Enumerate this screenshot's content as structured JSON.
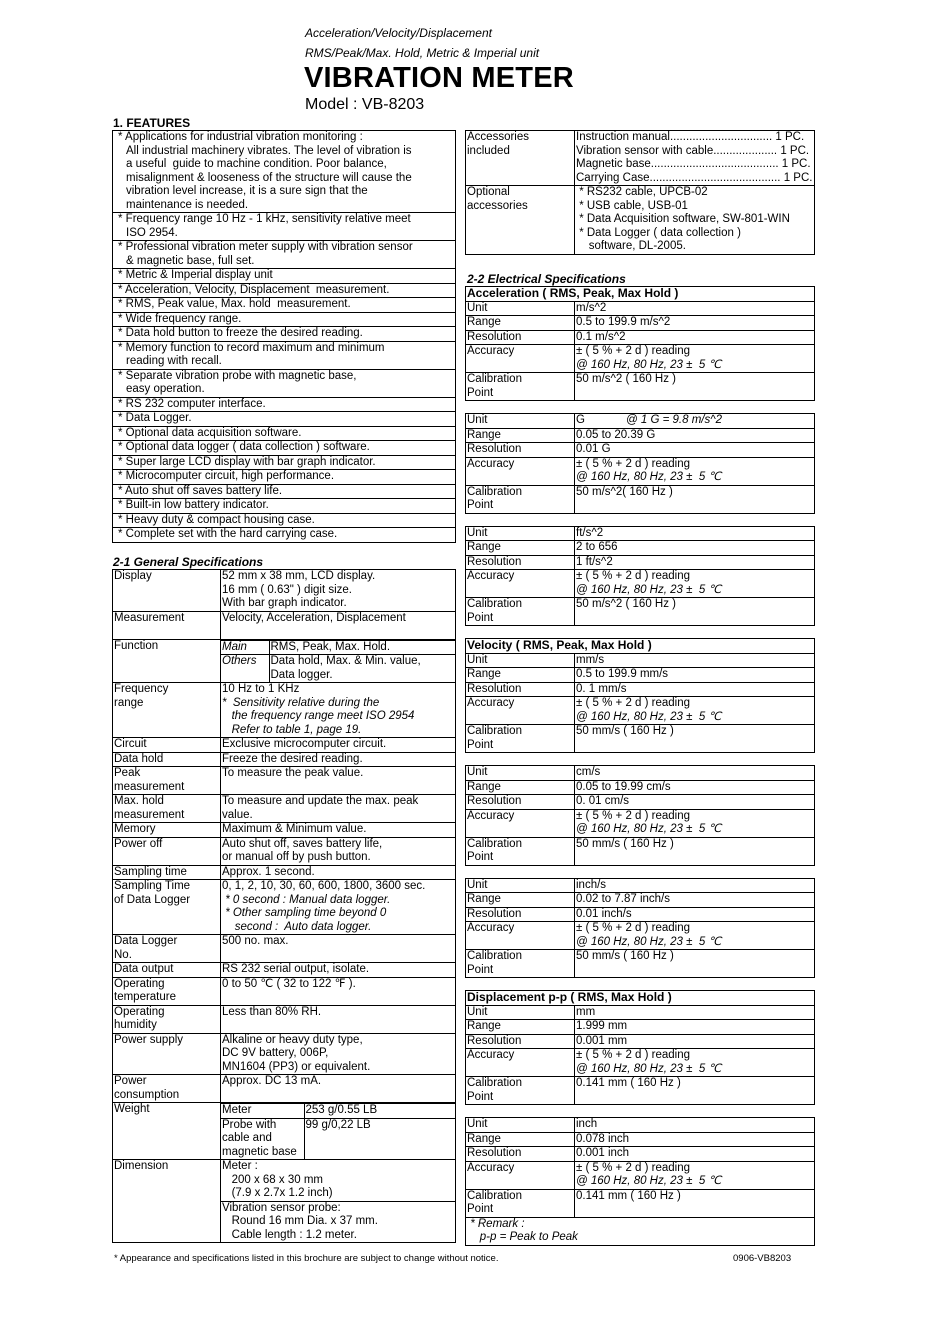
{
  "header": {
    "subtitle_1": "Acceleration/Velocity/Displacement",
    "subtitle_2": "RMS/Peak/Max. Hold, Metric & Imperial unit",
    "title": "VIBRATION METER",
    "model": "Model : VB-8203"
  },
  "features": {
    "heading": "1. FEATURES",
    "items": [
      [
        "* Applications for industrial vibration monitoring :",
        "All industrial machinery vibrates. The level of vibration is",
        "a useful  guide to machine condition. Poor balance,",
        "misalignment & looseness of the structure will cause the",
        "vibration level increase, it is a sure sign that the",
        "maintenance is needed."
      ],
      [
        "* Frequency range 10 Hz - 1 kHz, sensitivity relative meet",
        "ISO 2954."
      ],
      [
        "* Professional vibration meter supply with vibration sensor",
        "& magnetic base, full set."
      ],
      [
        "* Metric & Imperial display unit"
      ],
      [
        "* Acceleration, Velocity, Displacement  measurement."
      ],
      [
        "* RMS, Peak value, Max. hold  measurement."
      ],
      [
        "* Wide frequency range."
      ],
      [
        "* Data hold button to freeze the desired reading."
      ],
      [
        "* Memory function to record maximum and minimum",
        "reading with recall."
      ],
      [
        "* Separate vibration probe with magnetic base,",
        "easy operation."
      ],
      [
        "* RS 232 computer interface."
      ],
      [
        "* Data Logger."
      ],
      [
        "* Optional data acquisition software."
      ],
      [
        "* Optional data logger ( data collection ) software."
      ],
      [
        "* Super large LCD display with bar graph indicator."
      ],
      [
        "* Microcomputer circuit, high performance."
      ],
      [
        "* Auto shut off saves battery life."
      ],
      [
        "* Built-in low battery indicator."
      ],
      [
        "* Heavy duty & compact housing case."
      ],
      [
        "* Complete set with the hard carrying case."
      ]
    ]
  },
  "general": {
    "heading": "2-1 General Specifications",
    "rows": [
      {
        "label": [
          "Display"
        ],
        "value": [
          "52 mm x 38 mm, LCD display.",
          "16 mm ( 0.63\" ) digit size.",
          "With bar graph indicator."
        ]
      },
      {
        "label": [
          "Measurement",
          ""
        ],
        "value": [
          "Velocity, Acceleration, Displacement"
        ]
      },
      {
        "label": [
          "Function"
        ],
        "sub": [
          {
            "k": [
              "Main"
            ],
            "v": [
              "RMS, Peak, Max. Hold."
            ]
          },
          {
            "k": [
              "Others"
            ],
            "v": [
              "Data hold, Max. & Min. value,",
              "Data logger."
            ]
          }
        ],
        "sub_key_italic": true
      },
      {
        "label": [
          "Frequency",
          "range"
        ],
        "value": [
          "10 Hz to 1 KHz",
          "*  Sensitivity relative during the",
          "   the frequency range meet ISO 2954",
          "   Refer to table 1, page 19."
        ],
        "italic_from": 1
      },
      {
        "label": [
          "Circuit"
        ],
        "value": [
          "Exclusive microcomputer circuit."
        ]
      },
      {
        "label": [
          "Data hold"
        ],
        "value": [
          "Freeze the desired reading."
        ]
      },
      {
        "label": [
          "Peak",
          "measurement"
        ],
        "value": [
          "To measure the peak value."
        ]
      },
      {
        "label": [
          "Max. hold",
          "measurement"
        ],
        "value": [
          "To measure and update the max. peak",
          "value."
        ]
      },
      {
        "label": [
          "Memory"
        ],
        "value": [
          "Maximum & Minimum value."
        ]
      },
      {
        "label": [
          "Power off"
        ],
        "value": [
          "Auto shut off, saves battery life,",
          "or manual off by push button."
        ]
      },
      {
        "label": [
          "Sampling time"
        ],
        "value": [
          "Approx. 1 second."
        ]
      },
      {
        "label": [
          "Sampling Time",
          "of Data Logger"
        ],
        "value": [
          "0, 1, 2, 10, 30, 60, 600, 1800, 3600 sec.",
          " * 0 second : Manual data logger.",
          " * Other sampling time beyond 0",
          "    second :  Auto data logger."
        ],
        "italic_from": 1
      },
      {
        "label": [
          "Data Logger",
          "No."
        ],
        "value": [
          "500 no. max."
        ]
      },
      {
        "label": [
          "Data output"
        ],
        "value": [
          "RS 232 serial output, isolate."
        ]
      },
      {
        "label": [
          "Operating",
          "temperature"
        ],
        "value": [
          "0 to 50 ℃ ( 32 to 122 ℉ )."
        ]
      },
      {
        "label": [
          "Operating",
          "humidity"
        ],
        "value": [
          "Less than 80% RH."
        ]
      },
      {
        "label": [
          "Power supply"
        ],
        "value": [
          "Alkaline or heavy duty type,",
          "DC 9V battery, 006P,",
          "MN1604 (PP3) or equivalent."
        ]
      },
      {
        "label": [
          "Power",
          "consumption"
        ],
        "value": [
          "Approx. DC 13 mA."
        ]
      },
      {
        "label": [
          "Weight"
        ],
        "sub": [
          {
            "k": [
              "Meter"
            ],
            "v": [
              "253 g/0.55 LB"
            ]
          },
          {
            "k": [
              "Probe with",
              "cable and",
              "magnetic base"
            ],
            "v": [
              "99 g/0,22 LB"
            ]
          }
        ]
      },
      {
        "label": [
          "Dimension"
        ],
        "blocks": [
          [
            "Meter :",
            "   200 x 68 x 30 mm",
            "   (7.9 x 2.7x 1.2 inch)"
          ],
          [
            "Vibration sensor probe:",
            "   Round 16 mm Dia. x 37 mm.",
            "   Cable length : 1.2 meter."
          ]
        ]
      }
    ]
  },
  "accessories": {
    "rows": [
      {
        "label": [
          "Accessories",
          "included"
        ],
        "value": [
          "Instruction manual................................ 1 PC.",
          "Vibration sensor with cable.................... 1 PC.",
          "Magnetic base........................................ 1 PC.",
          "Carrying Case......................................... 1 PC."
        ],
        "ruled": true
      },
      {
        "label": [
          "Optional",
          "accessories"
        ],
        "value": [
          " * RS232 cable, UPCB-02",
          " * USB cable, USB-01",
          " * Data Acquisition software, SW-801-WIN",
          " * Data Logger ( data collection )",
          "    software, DL-2005."
        ]
      }
    ]
  },
  "electrical": {
    "heading": "2-2 Electrical Specifications",
    "tables": [
      {
        "title": "Acceleration ( RMS, Peak, Max Hold )",
        "rows": [
          {
            "label": [
              "Unit"
            ],
            "value": [
              "m/s^2"
            ]
          },
          {
            "label": [
              "Range"
            ],
            "value": [
              "0.5 to 199.9 m/s^2"
            ]
          },
          {
            "label": [
              "Resolution"
            ],
            "value": [
              "0.1 m/s^2"
            ]
          },
          {
            "label": [
              "Accuracy"
            ],
            "value": [
              "± ( 5 % + 2 d ) reading",
              "@ 160 Hz, 80 Hz, 23 ±  5 ℃"
            ]
          },
          {
            "label": [
              "Calibration",
              "Point"
            ],
            "value": [
              "50 m/s^2 ( 160 Hz )"
            ]
          }
        ]
      },
      {
        "rows": [
          {
            "label": [
              "Unit"
            ],
            "value": [
              "G"
            ],
            "note": "@ 1 G = 9.8 m/s^2"
          },
          {
            "label": [
              "Range"
            ],
            "value": [
              "0.05 to 20.39 G"
            ]
          },
          {
            "label": [
              "Resolution"
            ],
            "value": [
              "0.01 G"
            ]
          },
          {
            "label": [
              "Accuracy"
            ],
            "value": [
              "± ( 5 % + 2 d ) reading",
              "@ 160 Hz, 80 Hz, 23 ±  5 ℃"
            ]
          },
          {
            "label": [
              "Calibration",
              "Point"
            ],
            "value": [
              "50 m/s^2( 160 Hz )"
            ]
          }
        ]
      },
      {
        "rows": [
          {
            "label": [
              "Unit"
            ],
            "value": [
              "ft/s^2"
            ]
          },
          {
            "label": [
              "Range"
            ],
            "value": [
              "2 to 656"
            ]
          },
          {
            "label": [
              "Resolution"
            ],
            "value": [
              "1 ft/s^2"
            ]
          },
          {
            "label": [
              "Accuracy"
            ],
            "value": [
              "± ( 5 % + 2 d ) reading",
              "@ 160 Hz, 80 Hz, 23 ±  5 ℃"
            ]
          },
          {
            "label": [
              "Calibration",
              "Point"
            ],
            "value": [
              "50 m/s^2 ( 160 Hz )"
            ]
          }
        ]
      },
      {
        "title": "Velocity ( RMS, Peak, Max Hold )",
        "rows": [
          {
            "label": [
              "Unit"
            ],
            "value": [
              "mm/s"
            ]
          },
          {
            "label": [
              "Range"
            ],
            "value": [
              "0.5 to 199.9 mm/s"
            ]
          },
          {
            "label": [
              "Resolution"
            ],
            "value": [
              "0. 1 mm/s"
            ]
          },
          {
            "label": [
              "Accuracy"
            ],
            "value": [
              "± ( 5 % + 2 d ) reading",
              "@ 160 Hz, 80 Hz, 23 ±  5 ℃"
            ]
          },
          {
            "label": [
              "Calibration",
              "Point"
            ],
            "value": [
              "50 mm/s ( 160 Hz )"
            ]
          }
        ]
      },
      {
        "rows": [
          {
            "label": [
              "Unit"
            ],
            "value": [
              "cm/s"
            ]
          },
          {
            "label": [
              "Range"
            ],
            "value": [
              "0.05 to 19.99 cm/s"
            ]
          },
          {
            "label": [
              "Resolution"
            ],
            "value": [
              "0. 01 cm/s"
            ]
          },
          {
            "label": [
              "Accuracy"
            ],
            "value": [
              "± ( 5 % + 2 d ) reading",
              "@ 160 Hz, 80 Hz, 23 ±  5 ℃"
            ]
          },
          {
            "label": [
              "Calibration",
              "Point"
            ],
            "value": [
              "50 mm/s ( 160 Hz )"
            ]
          }
        ]
      },
      {
        "rows": [
          {
            "label": [
              "Unit"
            ],
            "value": [
              "inch/s"
            ]
          },
          {
            "label": [
              "Range"
            ],
            "value": [
              "0.02 to 7.87 inch/s"
            ]
          },
          {
            "label": [
              "Resolution"
            ],
            "value": [
              "0.01 inch/s"
            ]
          },
          {
            "label": [
              "Accuracy"
            ],
            "value": [
              "± ( 5 % + 2 d ) reading",
              "@ 160 Hz, 80 Hz, 23 ±  5 ℃"
            ]
          },
          {
            "label": [
              "Calibration",
              "Point"
            ],
            "value": [
              "50 mm/s ( 160 Hz )"
            ]
          }
        ]
      },
      {
        "title": "Displacement p-p ( RMS, Max Hold )",
        "rows": [
          {
            "label": [
              "Unit"
            ],
            "value": [
              "mm"
            ]
          },
          {
            "label": [
              "Range"
            ],
            "value": [
              "1.999 mm"
            ]
          },
          {
            "label": [
              "Resolution"
            ],
            "value": [
              "0.001 mm"
            ]
          },
          {
            "label": [
              "Accuracy"
            ],
            "value": [
              "± ( 5 % + 2 d ) reading",
              "@ 160 Hz, 80 Hz, 23 ±  5 ℃"
            ]
          },
          {
            "label": [
              "Calibration",
              "Point"
            ],
            "value": [
              "0.141 mm ( 160 Hz )"
            ]
          }
        ]
      },
      {
        "rows": [
          {
            "label": [
              "Unit"
            ],
            "value": [
              "inch"
            ]
          },
          {
            "label": [
              "Range"
            ],
            "value": [
              "0.078 inch"
            ]
          },
          {
            "label": [
              "Resolution"
            ],
            "value": [
              "0.001 inch"
            ]
          },
          {
            "label": [
              "Accuracy"
            ],
            "value": [
              "± ( 5 % + 2 d ) reading",
              "@ 160 Hz, 80 Hz, 23 ±  5 ℃"
            ]
          },
          {
            "label": [
              "Calibration",
              "Point"
            ],
            "value": [
              "0.141 mm ( 160 Hz )"
            ]
          }
        ],
        "remark": [
          " * Remark :",
          "    p-p = Peak to Peak"
        ]
      }
    ]
  },
  "footer": {
    "note": "* Appearance and specifications listed in this brochure are subject to change without notice.",
    "code": "0906-VB8203"
  }
}
